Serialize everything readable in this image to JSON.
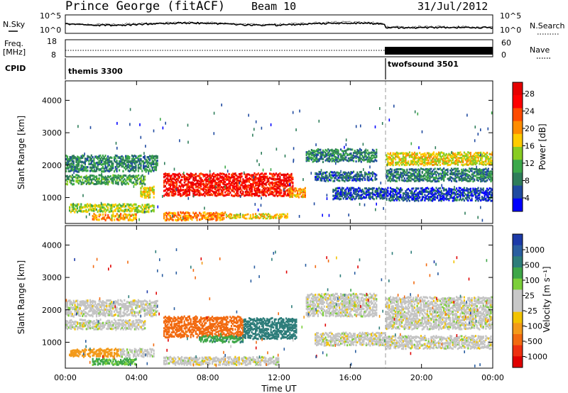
{
  "header": {
    "title": "Prince George (fitACF)",
    "beam": "Beam 10",
    "date": "31/Jul/2012"
  },
  "noise_panel": {
    "left_label": "N.Sky",
    "right_label": "N.Search",
    "left_ticks": [
      "10^5",
      "10^0"
    ],
    "right_ticks": [
      "10^5",
      "10^0"
    ]
  },
  "freq_panel": {
    "left_label_1": "Freq.",
    "left_label_2": "[MHz]",
    "left_ticks": [
      "18",
      "8"
    ],
    "right_label": "Nave",
    "right_ticks": [
      "60",
      "0"
    ]
  },
  "cpid_panel": {
    "label": "CPID",
    "segments": [
      {
        "name": "themis 3300",
        "start_hour": 0,
        "end_hour": 18
      },
      {
        "name": "twofsound 3501",
        "start_hour": 18,
        "end_hour": 24
      }
    ]
  },
  "x_axis": {
    "label": "Time UT",
    "ticks": [
      "00:00",
      "04:00",
      "08:00",
      "12:00",
      "16:00",
      "20:00",
      "00:00"
    ],
    "range_hours": [
      0,
      24
    ]
  },
  "power_scale": {
    "label": "Power [dB]",
    "ticks": [
      "28",
      "24",
      "20",
      "16",
      "12",
      "8",
      "4"
    ],
    "colors": [
      "#0000ff",
      "#1f4aa0",
      "#2e7d5a",
      "#3ca84a",
      "#88cc22",
      "#ffcc00",
      "#ff8c00",
      "#ff4a00",
      "#ff0000",
      "#e60000"
    ]
  },
  "velocity_scale": {
    "label": "Velocity [m s⁻¹]",
    "ticks": [
      "1000",
      "500",
      "100",
      "25",
      "-25",
      "-100",
      "-500",
      "-1000"
    ],
    "colors": [
      "#1c3aa8",
      "#2a5ea0",
      "#2d7d7a",
      "#3ea648",
      "#7ccf3a",
      "#c8c8c8",
      "#c8c8c8",
      "#f2c300",
      "#f39a1a",
      "#f26a10",
      "#ee3010",
      "#e00000"
    ]
  },
  "chart_data": [
    {
      "type": "heatmap",
      "title": "Power",
      "ylabel": "Slant Range [km]",
      "xlabel": "",
      "y_ticks": [
        "4000",
        "3000",
        "2000",
        "1000"
      ],
      "ylim": [
        200,
        4600
      ],
      "xlim_hours": [
        0,
        24
      ],
      "colorbar": "Power [dB]",
      "patches": [
        {
          "t0": 0.0,
          "t1": 5.2,
          "r0": 1800,
          "r1": 2300,
          "v": 10
        },
        {
          "t0": 0.0,
          "t1": 4.5,
          "r0": 1400,
          "r1": 1700,
          "v": 12
        },
        {
          "t0": 0.2,
          "t1": 5.0,
          "r0": 550,
          "r1": 800,
          "v": 16
        },
        {
          "t0": 1.5,
          "t1": 4.0,
          "r0": 300,
          "r1": 500,
          "v": 20
        },
        {
          "t0": 4.2,
          "t1": 5.0,
          "r0": 1000,
          "r1": 1350,
          "v": 18
        },
        {
          "t0": 5.5,
          "t1": 12.8,
          "r0": 1050,
          "r1": 1750,
          "v": 28
        },
        {
          "t0": 5.5,
          "t1": 9.0,
          "r0": 300,
          "r1": 550,
          "v": 22
        },
        {
          "t0": 9.0,
          "t1": 12.5,
          "r0": 350,
          "r1": 500,
          "v": 18
        },
        {
          "t0": 12.5,
          "t1": 13.5,
          "r0": 1000,
          "r1": 1300,
          "v": 20
        },
        {
          "t0": 13.5,
          "t1": 17.5,
          "r0": 2100,
          "r1": 2500,
          "v": 10
        },
        {
          "t0": 14.0,
          "t1": 17.5,
          "r0": 1500,
          "r1": 1800,
          "v": 8
        },
        {
          "t0": 15.0,
          "t1": 18.0,
          "r0": 950,
          "r1": 1300,
          "v": 7
        },
        {
          "t0": 18.0,
          "t1": 24.0,
          "r0": 2000,
          "r1": 2400,
          "v": 18
        },
        {
          "t0": 18.0,
          "t1": 24.0,
          "r0": 1500,
          "r1": 1900,
          "v": 9
        },
        {
          "t0": 18.0,
          "t1": 24.0,
          "r0": 900,
          "r1": 1300,
          "v": 6
        }
      ]
    },
    {
      "type": "heatmap",
      "title": "Velocity",
      "ylabel": "Slant Range [km]",
      "xlabel": "Time UT",
      "y_ticks": [
        "4000",
        "3000",
        "2000",
        "1000"
      ],
      "ylim": [
        200,
        4600
      ],
      "xlim_hours": [
        0,
        24
      ],
      "colorbar": "Velocity [m s⁻¹]",
      "patches": [
        {
          "t0": 0.0,
          "t1": 5.2,
          "r0": 1800,
          "r1": 2300,
          "v": 0
        },
        {
          "t0": 0.0,
          "t1": 4.5,
          "r0": 1400,
          "r1": 1700,
          "v": 0
        },
        {
          "t0": 0.2,
          "t1": 3.0,
          "r0": 550,
          "r1": 800,
          "v": -120
        },
        {
          "t0": 3.0,
          "t1": 5.0,
          "r0": 550,
          "r1": 800,
          "v": 0
        },
        {
          "t0": 1.5,
          "t1": 4.0,
          "r0": 300,
          "r1": 500,
          "v": 60
        },
        {
          "t0": 5.5,
          "t1": 10.0,
          "r0": 1150,
          "r1": 1800,
          "v": -300
        },
        {
          "t0": 10.0,
          "t1": 13.0,
          "r0": 1100,
          "r1": 1750,
          "v": 200
        },
        {
          "t0": 7.5,
          "t1": 10.0,
          "r0": 1000,
          "r1": 1200,
          "v": 80
        },
        {
          "t0": 5.5,
          "t1": 12.0,
          "r0": 300,
          "r1": 550,
          "v": 0
        },
        {
          "t0": 13.5,
          "t1": 17.5,
          "r0": 1800,
          "r1": 2500,
          "v": 0
        },
        {
          "t0": 14.0,
          "t1": 18.0,
          "r0": 900,
          "r1": 1300,
          "v": 0
        },
        {
          "t0": 18.0,
          "t1": 24.0,
          "r0": 1400,
          "r1": 2400,
          "v": 0
        },
        {
          "t0": 18.0,
          "t1": 24.0,
          "r0": 800,
          "r1": 1200,
          "v": 0
        }
      ]
    }
  ]
}
